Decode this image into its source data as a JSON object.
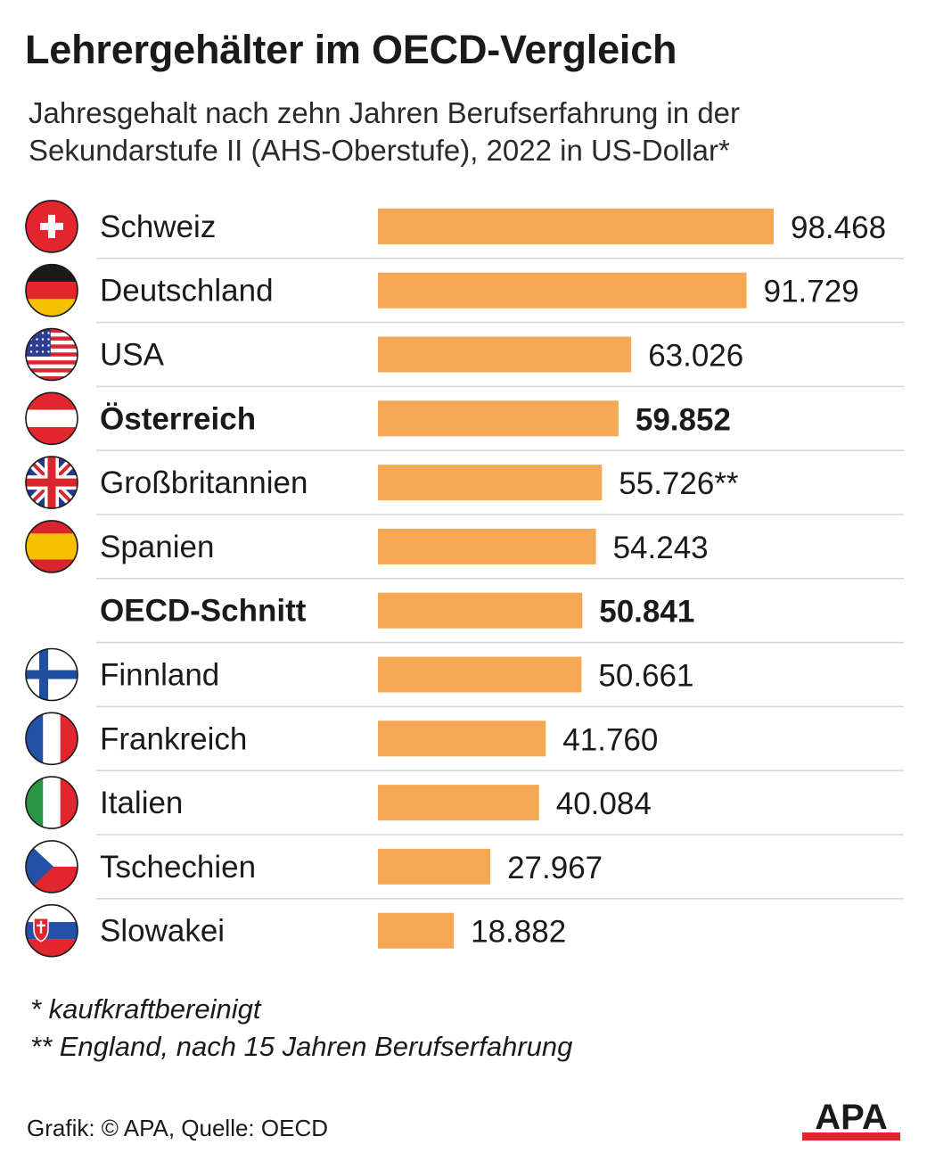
{
  "title": "Lehrergehälter im OECD-Vergleich",
  "subtitle": "Jahresgehalt nach zehn Jahren Berufserfahrung in der Sekundarstufe II (AHS-Oberstufe), 2022 in US-Dollar*",
  "colors": {
    "bar": "#f5a854",
    "divider": "#d6d6d6",
    "logo_red": "#e3262e",
    "text": "#1a1a1a"
  },
  "chart_data": {
    "type": "bar",
    "orientation": "horizontal",
    "title": "Lehrergehälter im OECD-Vergleich",
    "unit": "US-Dollar",
    "xlim": [
      0,
      98468
    ],
    "rows": [
      {
        "label": "Schweiz",
        "value": 98468,
        "display": "98.468",
        "flag": "switzerland-flag-icon",
        "bold": false
      },
      {
        "label": "Deutschland",
        "value": 91729,
        "display": "91.729",
        "flag": "germany-flag-icon",
        "bold": false
      },
      {
        "label": "USA",
        "value": 63026,
        "display": "63.026",
        "flag": "usa-flag-icon",
        "bold": false
      },
      {
        "label": "Österreich",
        "value": 59852,
        "display": "59.852",
        "flag": "austria-flag-icon",
        "bold": true
      },
      {
        "label": "Großbritannien",
        "value": 55726,
        "display": "55.726**",
        "flag": "uk-flag-icon",
        "bold": false
      },
      {
        "label": "Spanien",
        "value": 54243,
        "display": "54.243",
        "flag": "spain-flag-icon",
        "bold": false
      },
      {
        "label": "OECD-Schnitt",
        "value": 50841,
        "display": "50.841",
        "flag": "",
        "bold": true
      },
      {
        "label": "Finnland",
        "value": 50661,
        "display": "50.661",
        "flag": "finland-flag-icon",
        "bold": false
      },
      {
        "label": "Frankreich",
        "value": 41760,
        "display": "41.760",
        "flag": "france-flag-icon",
        "bold": false
      },
      {
        "label": "Italien",
        "value": 40084,
        "display": "40.084",
        "flag": "italy-flag-icon",
        "bold": false
      },
      {
        "label": "Tschechien",
        "value": 27967,
        "display": "27.967",
        "flag": "czechia-flag-icon",
        "bold": false
      },
      {
        "label": "Slowakei",
        "value": 18882,
        "display": "18.882",
        "flag": "slovakia-flag-icon",
        "bold": false
      }
    ]
  },
  "footnotes": [
    "* kaufkraftbereinigt",
    "** England, nach 15 Jahren Berufserfahrung"
  ],
  "source": "Grafik: © APA, Quelle: OECD",
  "logo_text": "APA"
}
